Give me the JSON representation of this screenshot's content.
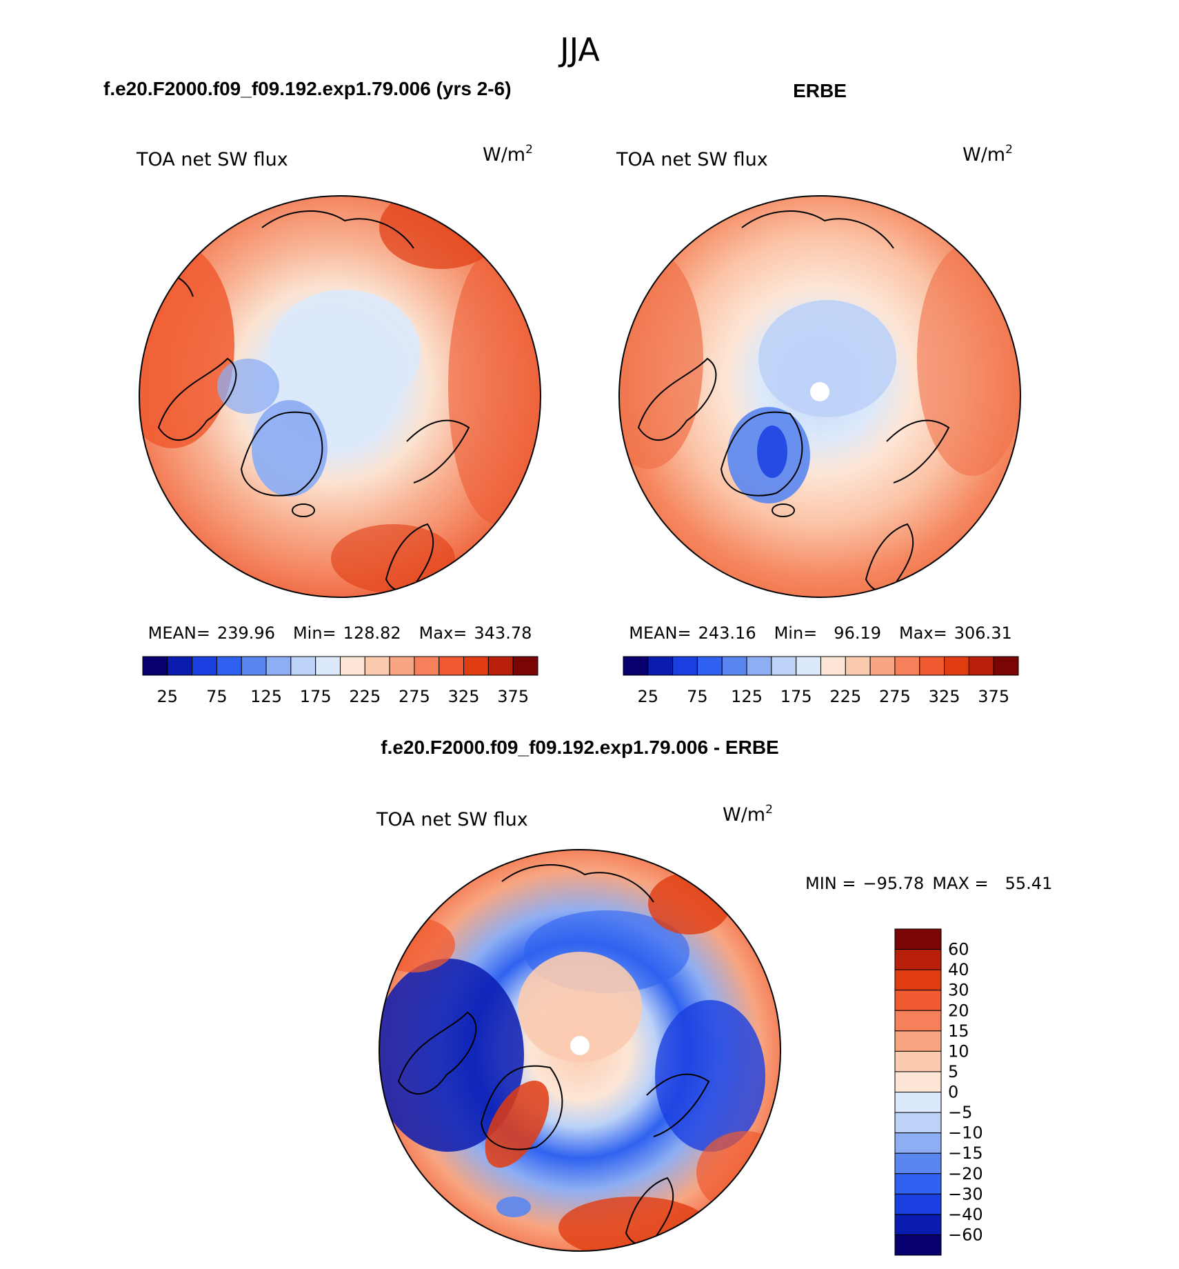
{
  "figure": {
    "season": "JJA",
    "model_title": "f.e20.F2000.f09_f09.192.exp1.79.006 (yrs 2-6)",
    "obs_title": "ERBE",
    "diff_title": "f.e20.F2000.f09_f09.192.exp1.79.006 - ERBE"
  },
  "chart_data": [
    {
      "type": "heatmap",
      "name": "model",
      "projection": "north polar stereographic",
      "title": "f.e20.F2000.f09_f09.192.exp1.79.006 (yrs 2-6)",
      "variable": "TOA net SW flux",
      "units": "W/m",
      "units_exp": "2",
      "stats": {
        "mean_label": "MEAN=",
        "mean": "239.96",
        "min_label": "Min=",
        "min": "128.82",
        "max_label": "Max=",
        "max": "343.78"
      },
      "colorbar_ticks": [
        "25",
        "75",
        "125",
        "175",
        "225",
        "275",
        "325",
        "375"
      ]
    },
    {
      "type": "heatmap",
      "name": "obs",
      "projection": "north polar stereographic",
      "title": "ERBE",
      "variable": "TOA net SW flux",
      "units": "W/m",
      "units_exp": "2",
      "stats": {
        "mean_label": "MEAN=",
        "mean": "243.16",
        "min_label": "Min=",
        "min": "96.19",
        "max_label": "Max=",
        "max": "306.31"
      },
      "colorbar_ticks": [
        "25",
        "75",
        "125",
        "175",
        "225",
        "275",
        "325",
        "375"
      ]
    },
    {
      "type": "heatmap",
      "name": "diff",
      "projection": "north polar stereographic",
      "title": "f.e20.F2000.f09_f09.192.exp1.79.006 - ERBE",
      "variable": "TOA net SW flux",
      "units": "W/m",
      "units_exp": "2",
      "stats": {
        "min_label": "MIN =",
        "min": "−95.78",
        "max_label": "MAX =",
        "max": "55.41"
      },
      "colorbar_ticks": [
        "60",
        "40",
        "30",
        "20",
        "15",
        "10",
        "5",
        "0",
        "−5",
        "−10",
        "−15",
        "−20",
        "−30",
        "−40",
        "−60"
      ]
    }
  ],
  "colors": {
    "abs_scale": [
      "#08006e",
      "#0a1bb0",
      "#1a3fe0",
      "#2f62f0",
      "#5a86ef",
      "#8eaef3",
      "#bcd2f7",
      "#dce9fb",
      "#fde6d6",
      "#fbcbb0",
      "#f8a682",
      "#f5805a",
      "#f05a30",
      "#e03c12",
      "#b8200a",
      "#7a0505"
    ],
    "diff_scale": [
      "#7a0505",
      "#b8200a",
      "#e03c12",
      "#f05a30",
      "#f5805a",
      "#f8a682",
      "#fbcbb0",
      "#fde6d6",
      "#dce9fb",
      "#bcd2f7",
      "#8eaef3",
      "#5a86ef",
      "#2f62f0",
      "#1a3fe0",
      "#0a1bb0",
      "#08006e"
    ]
  }
}
